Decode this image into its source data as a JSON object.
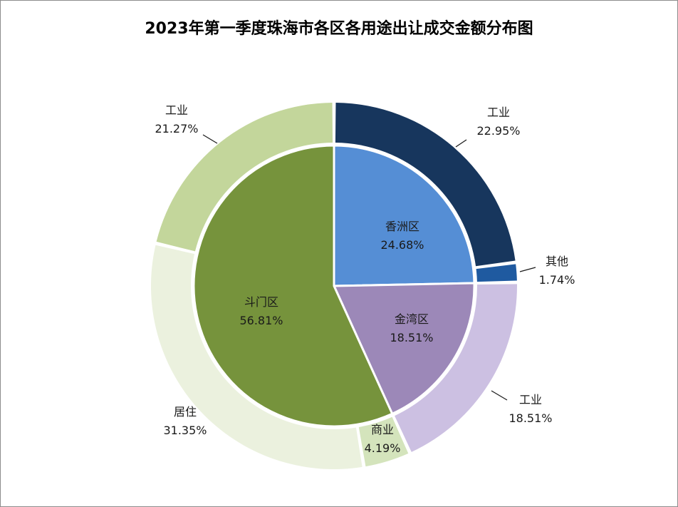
{
  "chart_data": {
    "type": "pie",
    "title": "2023年第一季度珠海市各区各用途出让成交金额分布图",
    "inner": [
      {
        "name": "香洲区",
        "percent": "24.68%",
        "value": 24.68,
        "color": "#558ed5"
      },
      {
        "name": "金湾区",
        "percent": "18.51%",
        "value": 18.51,
        "color": "#9c88b8"
      },
      {
        "name": "斗门区",
        "percent": "56.81%",
        "value": 56.81,
        "color": "#76933c"
      }
    ],
    "outer": [
      {
        "name": "工业",
        "percent": "22.95%",
        "value": 22.95,
        "color": "#17365d"
      },
      {
        "name": "其他",
        "percent": "1.74%",
        "value": 1.74,
        "color": "#1f5aa0"
      },
      {
        "name": "工业",
        "percent": "18.51%",
        "value": 18.51,
        "color": "#ccc0e2"
      },
      {
        "name": "商业",
        "percent": "4.19%",
        "value": 4.19,
        "color": "#d4e4bc"
      },
      {
        "name": "居住",
        "percent": "31.35%",
        "value": 31.35,
        "color": "#ebf1de"
      },
      {
        "name": "工业",
        "percent": "21.27%",
        "value": 21.27,
        "color": "#c3d69b"
      }
    ]
  }
}
